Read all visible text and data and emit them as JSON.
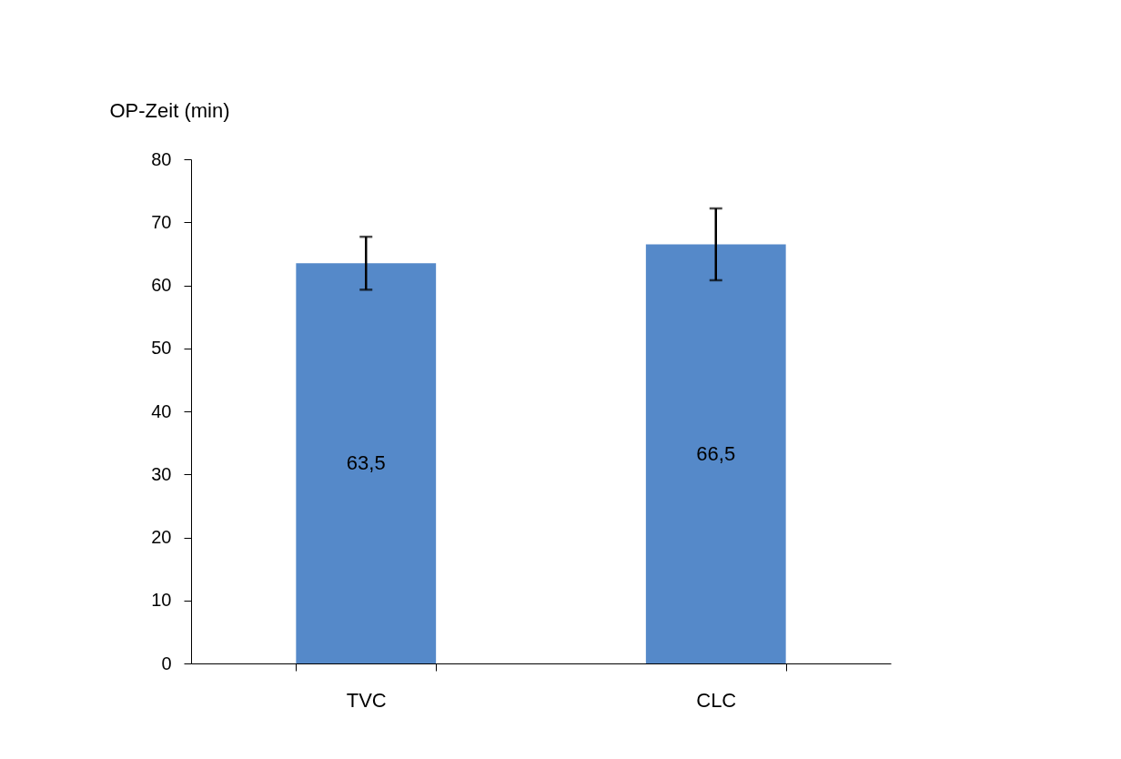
{
  "chart_data": {
    "type": "bar",
    "ylabel": "OP-Zeit (min)",
    "categories": [
      "TVC",
      "CLC"
    ],
    "values": [
      63.5,
      66.5
    ],
    "color": "#5589c9",
    "errors": [
      4.2,
      5.7
    ],
    "value_labels": [
      "63,5",
      "66,5"
    ],
    "ylim": [
      0,
      80
    ],
    "yticks": [
      0,
      10,
      20,
      30,
      40,
      50,
      60,
      70,
      80
    ],
    "grid": false
  }
}
